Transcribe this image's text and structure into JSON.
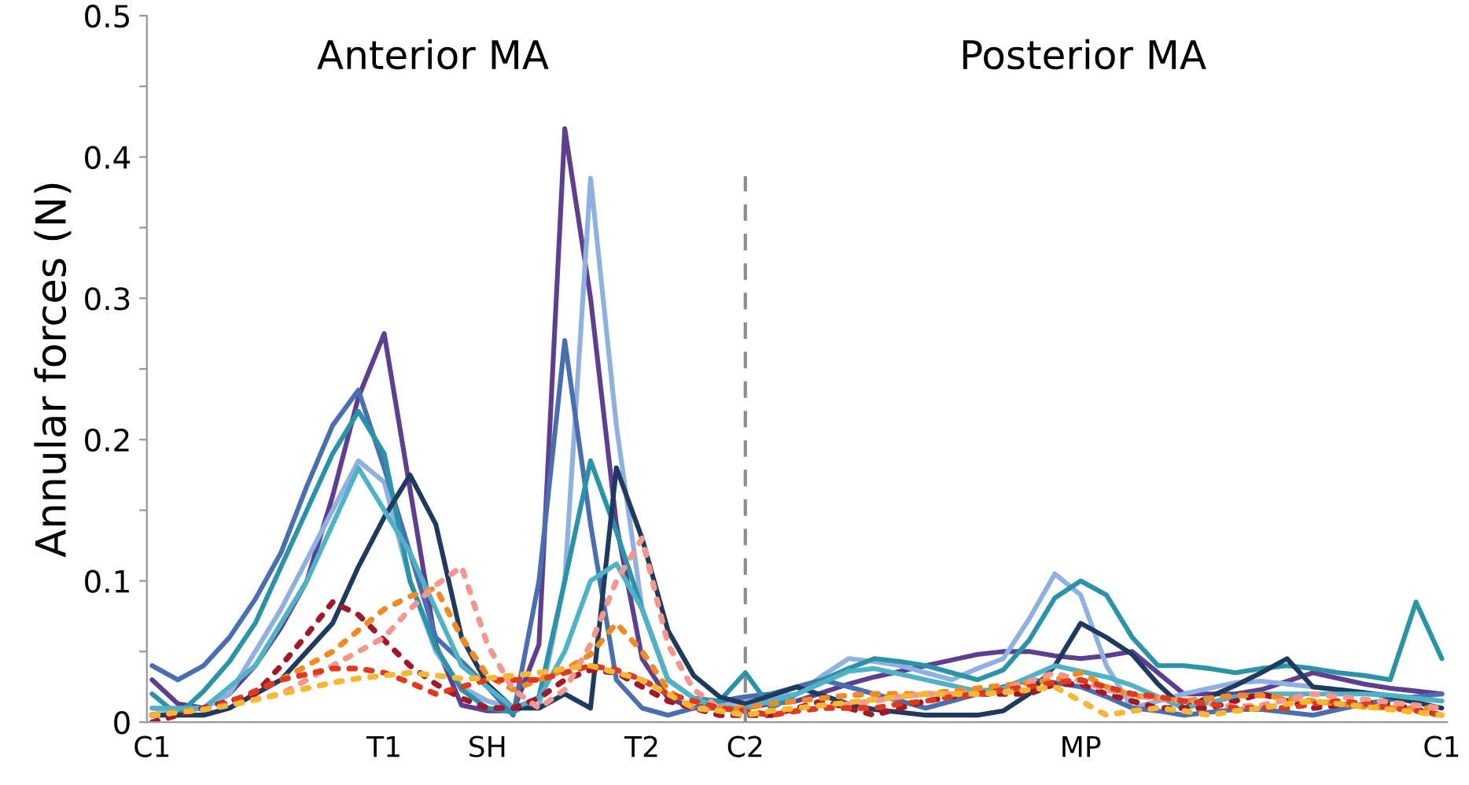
{
  "chart_data": {
    "type": "line",
    "ylabel": "Annular forces (N)",
    "annotations": [
      "Anterior MA",
      "Posterior MA"
    ],
    "categories": [
      "C1",
      null,
      null,
      null,
      null,
      null,
      null,
      null,
      null,
      "T1",
      null,
      null,
      null,
      "SH",
      null,
      null,
      null,
      null,
      null,
      "T2",
      null,
      null,
      null,
      "C2",
      null,
      null,
      null,
      null,
      null,
      null,
      null,
      null,
      null,
      null,
      null,
      null,
      "MP",
      null,
      null,
      null,
      null,
      null,
      null,
      null,
      null,
      null,
      null,
      null,
      null,
      null,
      "C1"
    ],
    "ylim": [
      0,
      0.5
    ],
    "yticks": [
      0,
      {
        "value": 0.05,
        "label": null
      },
      0.1,
      {
        "value": 0.15,
        "label": null
      },
      0.2,
      {
        "value": 0.25,
        "label": null
      },
      0.3,
      {
        "value": 0.35,
        "label": null
      },
      0.4,
      {
        "value": 0.45,
        "label": null
      },
      0.5
    ],
    "grid": false,
    "marker": "none",
    "ref_lines": [
      {
        "axis": "x",
        "value": "C2",
        "color": "#8c8c8c",
        "line_style": "dashed"
      }
    ],
    "series": [
      {
        "color": "#5e3f8f",
        "line_style": "solid",
        "values": [
          0.03,
          0.013,
          0.01,
          0.02,
          0.04,
          0.067,
          0.1,
          0.16,
          0.23,
          0.275,
          0.165,
          0.055,
          0.012,
          0.008,
          0.008,
          0.055,
          0.42,
          0.3,
          0.14,
          0.045,
          0.017,
          0.01,
          0.01,
          0.01,
          0.013,
          0.015,
          0.021,
          0.027,
          0.032,
          0.036,
          0.04,
          0.044,
          0.048,
          0.05,
          0.05,
          0.047,
          0.045,
          0.047,
          0.05,
          0.035,
          0.02,
          0.02,
          0.02,
          0.023,
          0.029,
          0.035,
          0.031,
          0.027,
          0.024,
          0.022,
          0.02
        ]
      },
      {
        "color": "#8fb0e0",
        "line_style": "solid",
        "values": [
          0.01,
          0.007,
          0.01,
          0.02,
          0.05,
          0.08,
          0.115,
          0.15,
          0.185,
          0.17,
          0.1,
          0.05,
          0.025,
          0.015,
          0.01,
          0.01,
          0.1,
          0.385,
          0.21,
          0.08,
          0.03,
          0.017,
          0.012,
          0.015,
          0.018,
          0.02,
          0.033,
          0.045,
          0.043,
          0.04,
          0.035,
          0.03,
          0.038,
          0.045,
          0.073,
          0.105,
          0.09,
          0.04,
          0.01,
          0.015,
          0.02,
          0.024,
          0.028,
          0.029,
          0.027,
          0.025,
          0.023,
          0.021,
          0.019,
          0.017,
          0.015
        ]
      },
      {
        "color": "#4a6fb0",
        "line_style": "solid",
        "values": [
          0.04,
          0.03,
          0.04,
          0.06,
          0.087,
          0.12,
          0.167,
          0.21,
          0.235,
          0.18,
          0.12,
          0.06,
          0.043,
          0.025,
          0.005,
          0.1,
          0.27,
          0.14,
          0.03,
          0.01,
          0.005,
          0.01,
          0.015,
          0.018,
          0.02,
          0.025,
          0.03,
          0.025,
          0.02,
          0.015,
          0.01,
          0.015,
          0.02,
          0.025,
          0.03,
          0.028,
          0.025,
          0.018,
          0.01,
          0.008,
          0.005,
          0.007,
          0.009,
          0.009,
          0.007,
          0.005,
          0.009,
          0.013,
          0.016,
          0.018,
          0.02
        ]
      },
      {
        "color": "#2a93a8",
        "line_style": "solid",
        "values": [
          0.02,
          0.005,
          0.022,
          0.043,
          0.07,
          0.11,
          0.15,
          0.19,
          0.22,
          0.19,
          0.1,
          0.053,
          0.023,
          0.01,
          0.007,
          0.018,
          0.1,
          0.185,
          0.135,
          0.08,
          0.03,
          0.017,
          0.015,
          0.035,
          0.01,
          0.02,
          0.03,
          0.038,
          0.045,
          0.043,
          0.04,
          0.035,
          0.03,
          0.037,
          0.058,
          0.088,
          0.1,
          0.09,
          0.06,
          0.04,
          0.04,
          0.038,
          0.035,
          0.038,
          0.04,
          0.038,
          0.035,
          0.033,
          0.03,
          0.085,
          0.045
        ]
      },
      {
        "color": "#1f3a5f",
        "line_style": "solid",
        "values": [
          0.005,
          0.005,
          0.005,
          0.01,
          0.02,
          0.03,
          0.05,
          0.07,
          0.11,
          0.145,
          0.175,
          0.14,
          0.06,
          0.027,
          0.01,
          0.01,
          0.02,
          0.01,
          0.18,
          0.13,
          0.065,
          0.033,
          0.018,
          0.013,
          0.019,
          0.025,
          0.019,
          0.013,
          0.009,
          0.007,
          0.005,
          0.005,
          0.005,
          0.008,
          0.02,
          0.04,
          0.07,
          0.06,
          0.048,
          0.027,
          0.01,
          0.018,
          0.026,
          0.035,
          0.045,
          0.025,
          0.023,
          0.021,
          0.018,
          0.014,
          0.01
        ]
      },
      {
        "color": "#4fb3c8",
        "line_style": "solid",
        "values": [
          0.01,
          0.01,
          0.01,
          0.025,
          0.04,
          0.07,
          0.1,
          0.14,
          0.18,
          0.15,
          0.12,
          0.08,
          0.04,
          0.025,
          0.01,
          0.017,
          0.05,
          0.1,
          0.112,
          0.08,
          0.03,
          0.017,
          0.01,
          0.01,
          0.015,
          0.02,
          0.028,
          0.036,
          0.038,
          0.034,
          0.03,
          0.026,
          0.022,
          0.024,
          0.032,
          0.04,
          0.036,
          0.032,
          0.026,
          0.018,
          0.01,
          0.014,
          0.018,
          0.02,
          0.02,
          0.02,
          0.02,
          0.02,
          0.019,
          0.017,
          0.015
        ]
      },
      {
        "color": "#a0182a",
        "line_style": "dotted",
        "values": [
          0,
          0.005,
          0.01,
          0.015,
          0.02,
          0.04,
          0.062,
          0.085,
          0.076,
          0.058,
          0.04,
          0.027,
          0.017,
          0.01,
          0.01,
          0.017,
          0.03,
          0.037,
          0.035,
          0.025,
          0.015,
          0.01,
          0.005,
          0.005,
          0.005,
          0.01,
          0.015,
          0.01,
          0.005,
          0.01,
          0.015,
          0.018,
          0.02,
          0.02,
          0.02,
          0.027,
          0.027,
          0.02,
          0.015,
          0.01,
          0.01,
          0.01,
          0.015,
          0.02,
          0.015,
          0.01,
          0.012,
          0.014,
          0.013,
          0.009,
          0.005
        ]
      },
      {
        "color": "#f08a24",
        "line_style": "dotted",
        "values": [
          0.005,
          0.007,
          0.009,
          0.014,
          0.022,
          0.03,
          0.04,
          0.05,
          0.065,
          0.08,
          0.089,
          0.095,
          0.06,
          0.033,
          0.023,
          0.03,
          0.037,
          0.048,
          0.07,
          0.05,
          0.023,
          0.01,
          0.01,
          0.01,
          0.013,
          0.015,
          0.017,
          0.019,
          0.02,
          0.02,
          0.02,
          0.022,
          0.024,
          0.026,
          0.028,
          0.03,
          0.035,
          0.025,
          0.019,
          0.017,
          0.015,
          0.017,
          0.019,
          0.019,
          0.017,
          0.015,
          0.013,
          0.011,
          0.01,
          0.01,
          0.01
        ]
      },
      {
        "color": "#f4978e",
        "line_style": "dotted",
        "values": [
          0.005,
          0.007,
          0.009,
          0.012,
          0.016,
          0.02,
          0.03,
          0.04,
          0.05,
          0.06,
          0.08,
          0.097,
          0.11,
          0.055,
          0.023,
          0.01,
          0.023,
          0.055,
          0.1,
          0.13,
          0.055,
          0.023,
          0.01,
          0.008,
          0.005,
          0.008,
          0.01,
          0.013,
          0.015,
          0.018,
          0.02,
          0.02,
          0.02,
          0.023,
          0.029,
          0.035,
          0.029,
          0.023,
          0.019,
          0.017,
          0.015,
          0.013,
          0.011,
          0.012,
          0.016,
          0.02,
          0.018,
          0.016,
          0.014,
          0.012,
          0.01
        ]
      },
      {
        "color": "#e03a1e",
        "line_style": "dotted",
        "values": [
          0.005,
          0.007,
          0.009,
          0.014,
          0.022,
          0.03,
          0.034,
          0.038,
          0.038,
          0.035,
          0.028,
          0.02,
          0.025,
          0.03,
          0.03,
          0.03,
          0.035,
          0.04,
          0.037,
          0.03,
          0.02,
          0.015,
          0.01,
          0.008,
          0.005,
          0.008,
          0.01,
          0.01,
          0.01,
          0.013,
          0.015,
          0.018,
          0.02,
          0.023,
          0.025,
          0.028,
          0.03,
          0.025,
          0.02,
          0.018,
          0.015,
          0.013,
          0.01,
          0.01,
          0.01,
          0.013,
          0.015,
          0.013,
          0.01,
          0.008,
          0.005
        ]
      },
      {
        "color": "#f7b733",
        "line_style": "dotted",
        "values": [
          0.005,
          0.007,
          0.009,
          0.012,
          0.016,
          0.02,
          0.024,
          0.028,
          0.031,
          0.033,
          0.035,
          0.033,
          0.031,
          0.031,
          0.033,
          0.035,
          0.038,
          0.04,
          0.035,
          0.03,
          0.02,
          0.01,
          0.008,
          0.005,
          0.008,
          0.01,
          0.012,
          0.014,
          0.016,
          0.018,
          0.02,
          0.02,
          0.02,
          0.021,
          0.023,
          0.025,
          0.015,
          0.005,
          0.008,
          0.01,
          0.008,
          0.005,
          0.008,
          0.01,
          0.013,
          0.015,
          0.013,
          0.011,
          0.009,
          0.007,
          0.005
        ]
      }
    ]
  }
}
